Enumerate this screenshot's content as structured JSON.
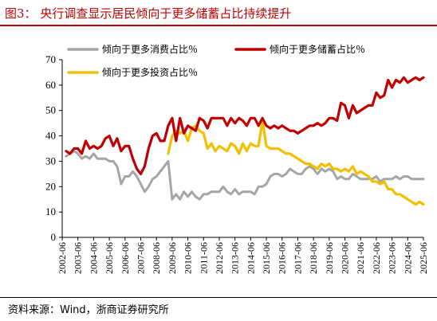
{
  "title": {
    "label": "图3：",
    "text": "央行调查显示居民倾向于更多储蓄占比持续提升"
  },
  "source": "资料来源：Wind，浙商证券研究所",
  "colors": {
    "title": "#c00000",
    "consume": "#a6a6a6",
    "save": "#c00000",
    "invest": "#f2c000"
  },
  "chart_data": {
    "type": "line",
    "ylim": [
      0,
      70
    ],
    "yticks": [
      0,
      10,
      20,
      30,
      40,
      50,
      60,
      70
    ],
    "xlim": [
      2002.5,
      2025.5
    ],
    "xticks": [
      "2002-06",
      "2003-06",
      "2004-06",
      "2005-06",
      "2006-06",
      "2007-06",
      "2008-06",
      "2009-06",
      "2010-06",
      "2011-06",
      "2012-06",
      "2013-06",
      "2014-06",
      "2015-06",
      "2016-06",
      "2017-06",
      "2018-06",
      "2019-06",
      "2020-06",
      "2021-06",
      "2022-06",
      "2023-06",
      "2024-06",
      "2025-06"
    ],
    "legend": [
      {
        "key": "consume",
        "label": "倾向于更多消费占比％"
      },
      {
        "key": "save",
        "label": "倾向于更多储蓄占比％"
      },
      {
        "key": "invest",
        "label": "倾向于更多投资占比％"
      }
    ],
    "series": [
      {
        "key": "save",
        "name": "倾向于更多储蓄占比％",
        "color": "#c00000",
        "x": [
          2002.75,
          2003.0,
          2003.25,
          2003.5,
          2003.75,
          2004.0,
          2004.25,
          2004.5,
          2004.75,
          2005.0,
          2005.25,
          2005.5,
          2005.75,
          2006.0,
          2006.25,
          2006.5,
          2006.75,
          2007.0,
          2007.25,
          2007.5,
          2007.75,
          2008.0,
          2008.25,
          2008.5,
          2008.75,
          2009.0,
          2009.25,
          2009.5,
          2009.75,
          2010.0,
          2010.25,
          2010.5,
          2010.75,
          2011.0,
          2011.25,
          2011.5,
          2011.75,
          2012.0,
          2012.25,
          2012.5,
          2012.75,
          2013.0,
          2013.25,
          2013.5,
          2013.75,
          2014.0,
          2014.25,
          2014.5,
          2014.75,
          2015.0,
          2015.25,
          2015.5,
          2015.75,
          2016.0,
          2016.25,
          2016.5,
          2016.75,
          2017.0,
          2017.25,
          2017.5,
          2017.75,
          2018.0,
          2018.25,
          2018.5,
          2018.75,
          2019.0,
          2019.25,
          2019.5,
          2019.75,
          2020.0,
          2020.25,
          2020.5,
          2020.75,
          2021.0,
          2021.25,
          2021.5,
          2021.75,
          2022.0,
          2022.25,
          2022.5,
          2022.75,
          2023.0,
          2023.25,
          2023.5,
          2023.75,
          2024.0,
          2024.25,
          2024.5,
          2024.75,
          2025.0,
          2025.25,
          2025.5
        ],
        "values": [
          34,
          33,
          35,
          35,
          33,
          38,
          35,
          36,
          35,
          36,
          39,
          40,
          36,
          39,
          34,
          36,
          36,
          31,
          27,
          25,
          28,
          35,
          40,
          41,
          38,
          38,
          44,
          47,
          38,
          47,
          41,
          44,
          43,
          42,
          47,
          46,
          43,
          47,
          47,
          47,
          47,
          44,
          47,
          45,
          47,
          46,
          44,
          47,
          47,
          44,
          47,
          44,
          43,
          44,
          43,
          44,
          43,
          42,
          42,
          41,
          42,
          43,
          44,
          44,
          45,
          44,
          45,
          47,
          47,
          46,
          53,
          52,
          47,
          52,
          49,
          50,
          51,
          52,
          52,
          57,
          55,
          56,
          62,
          59,
          62,
          61,
          63,
          61,
          62,
          63,
          62,
          63
        ]
      },
      {
        "key": "consume",
        "name": "倾向于更多消费占比％",
        "color": "#a6a6a6",
        "x": [
          2002.75,
          2003.0,
          2003.25,
          2003.5,
          2003.75,
          2004.0,
          2004.25,
          2004.5,
          2004.75,
          2005.0,
          2005.25,
          2005.5,
          2005.75,
          2006.0,
          2006.25,
          2006.5,
          2006.75,
          2007.0,
          2007.25,
          2007.5,
          2007.75,
          2008.0,
          2008.25,
          2008.5,
          2008.75,
          2009.0,
          2009.25,
          2009.5,
          2009.75,
          2010.0,
          2010.25,
          2010.5,
          2010.75,
          2011.0,
          2011.25,
          2011.5,
          2011.75,
          2012.0,
          2012.25,
          2012.5,
          2012.75,
          2013.0,
          2013.25,
          2013.5,
          2013.75,
          2014.0,
          2014.25,
          2014.5,
          2014.75,
          2015.0,
          2015.25,
          2015.5,
          2015.75,
          2016.0,
          2016.25,
          2016.5,
          2016.75,
          2017.0,
          2017.25,
          2017.5,
          2017.75,
          2018.0,
          2018.25,
          2018.5,
          2018.75,
          2019.0,
          2019.25,
          2019.5,
          2019.75,
          2020.0,
          2020.25,
          2020.5,
          2020.75,
          2021.0,
          2021.25,
          2021.5,
          2021.75,
          2022.0,
          2022.25,
          2022.5,
          2022.75,
          2023.0,
          2023.25,
          2023.5,
          2023.75,
          2024.0,
          2024.25,
          2024.5,
          2024.75,
          2025.0,
          2025.25,
          2025.5
        ],
        "values": [
          32,
          33,
          34,
          33,
          31,
          32,
          31,
          33,
          31,
          31,
          31,
          30,
          30,
          28,
          21,
          24,
          24,
          26,
          24,
          21,
          18,
          20,
          23,
          24,
          26,
          28,
          30,
          15,
          17,
          15,
          18,
          16,
          18,
          16,
          15,
          17,
          17,
          18,
          18,
          18,
          20,
          18,
          17,
          19,
          17,
          18,
          18,
          18,
          17,
          20,
          20,
          21,
          24,
          25,
          25,
          24,
          25,
          27,
          26,
          25,
          25,
          27,
          28,
          27,
          25,
          27,
          26,
          27,
          26,
          23,
          24,
          23,
          23,
          25,
          24,
          23,
          23,
          23,
          23,
          24,
          22,
          23,
          23,
          23,
          24,
          23,
          24,
          24,
          23,
          23,
          23,
          23
        ]
      },
      {
        "key": "invest",
        "name": "倾向于更多投资占比％",
        "color": "#f2c000",
        "x": [
          2009.25,
          2009.5,
          2009.75,
          2010.0,
          2010.25,
          2010.5,
          2010.75,
          2011.0,
          2011.25,
          2011.5,
          2011.75,
          2012.0,
          2012.25,
          2012.5,
          2012.75,
          2013.0,
          2013.25,
          2013.5,
          2013.75,
          2014.0,
          2014.25,
          2014.5,
          2014.75,
          2015.0,
          2015.25,
          2015.5,
          2015.75,
          2016.0,
          2016.25,
          2016.5,
          2016.75,
          2017.0,
          2017.25,
          2017.5,
          2017.75,
          2018.0,
          2018.25,
          2018.5,
          2018.75,
          2019.0,
          2019.25,
          2019.5,
          2019.75,
          2020.0,
          2020.25,
          2020.5,
          2020.75,
          2021.0,
          2021.25,
          2021.5,
          2021.75,
          2022.0,
          2022.25,
          2022.5,
          2022.75,
          2023.0,
          2023.25,
          2023.5,
          2023.75,
          2024.0,
          2024.25,
          2024.5,
          2024.75,
          2025.0,
          2025.25,
          2025.5
        ],
        "values": [
          33,
          40,
          42,
          41,
          42,
          38,
          43,
          44,
          42,
          41,
          35,
          37,
          34,
          36,
          35,
          34,
          37,
          36,
          33,
          37,
          34,
          37,
          36,
          36,
          46,
          36,
          35,
          35,
          35,
          34,
          33,
          33,
          32,
          31,
          30,
          29,
          29,
          28,
          27,
          29,
          28,
          29,
          27,
          27,
          26,
          27,
          26,
          28,
          25,
          26,
          25,
          24,
          22,
          22,
          21,
          22,
          19,
          19,
          17,
          17,
          16,
          15,
          14,
          13,
          14,
          13
        ]
      }
    ]
  }
}
